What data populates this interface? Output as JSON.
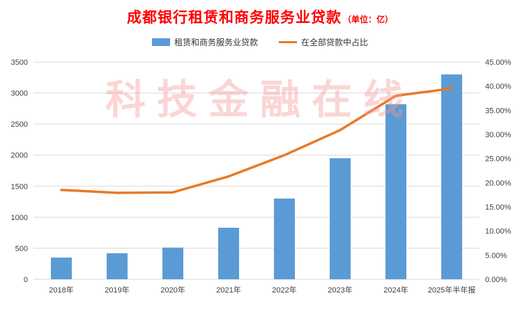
{
  "header": {
    "title": "成都银行租赁和商务服务业贷款",
    "unit": "（单位：亿）",
    "title_color": "#FF0000"
  },
  "watermark": {
    "text": "科技金融在线",
    "color": "rgba(245,150,150,0.40)"
  },
  "colors": {
    "bar": "#5B9BD5",
    "line": "#E87A25",
    "grid": "#D9D9D9",
    "axis_text": "#404040"
  },
  "chart_data": {
    "type": "bar",
    "subtype": "bar+line combo",
    "title": "成都银行租赁和商务服务业贷款（单位：亿）",
    "categories": [
      "2018年",
      "2019年",
      "2020年",
      "2021年",
      "2022年",
      "2023年",
      "2024年",
      "2025年半年报"
    ],
    "series": [
      {
        "name": "租赁和商务服务业贷款",
        "type": "bar",
        "axis": "left",
        "color": "#5B9BD5",
        "values": [
          350,
          420,
          510,
          830,
          1300,
          1950,
          2820,
          3300
        ]
      },
      {
        "name": "在全部贷款中占比",
        "type": "line",
        "axis": "right",
        "color": "#E87A25",
        "values": [
          18.5,
          17.9,
          18.0,
          21.3,
          25.7,
          30.9,
          38.0,
          39.5
        ]
      }
    ],
    "left_axis": {
      "min": 0,
      "max": 3500,
      "step": 500,
      "suffix": "",
      "decimals": 0
    },
    "right_axis": {
      "min": 0,
      "max": 45,
      "step": 5,
      "suffix": "%",
      "decimals": 2
    },
    "grid": true,
    "legend_position": "top"
  }
}
